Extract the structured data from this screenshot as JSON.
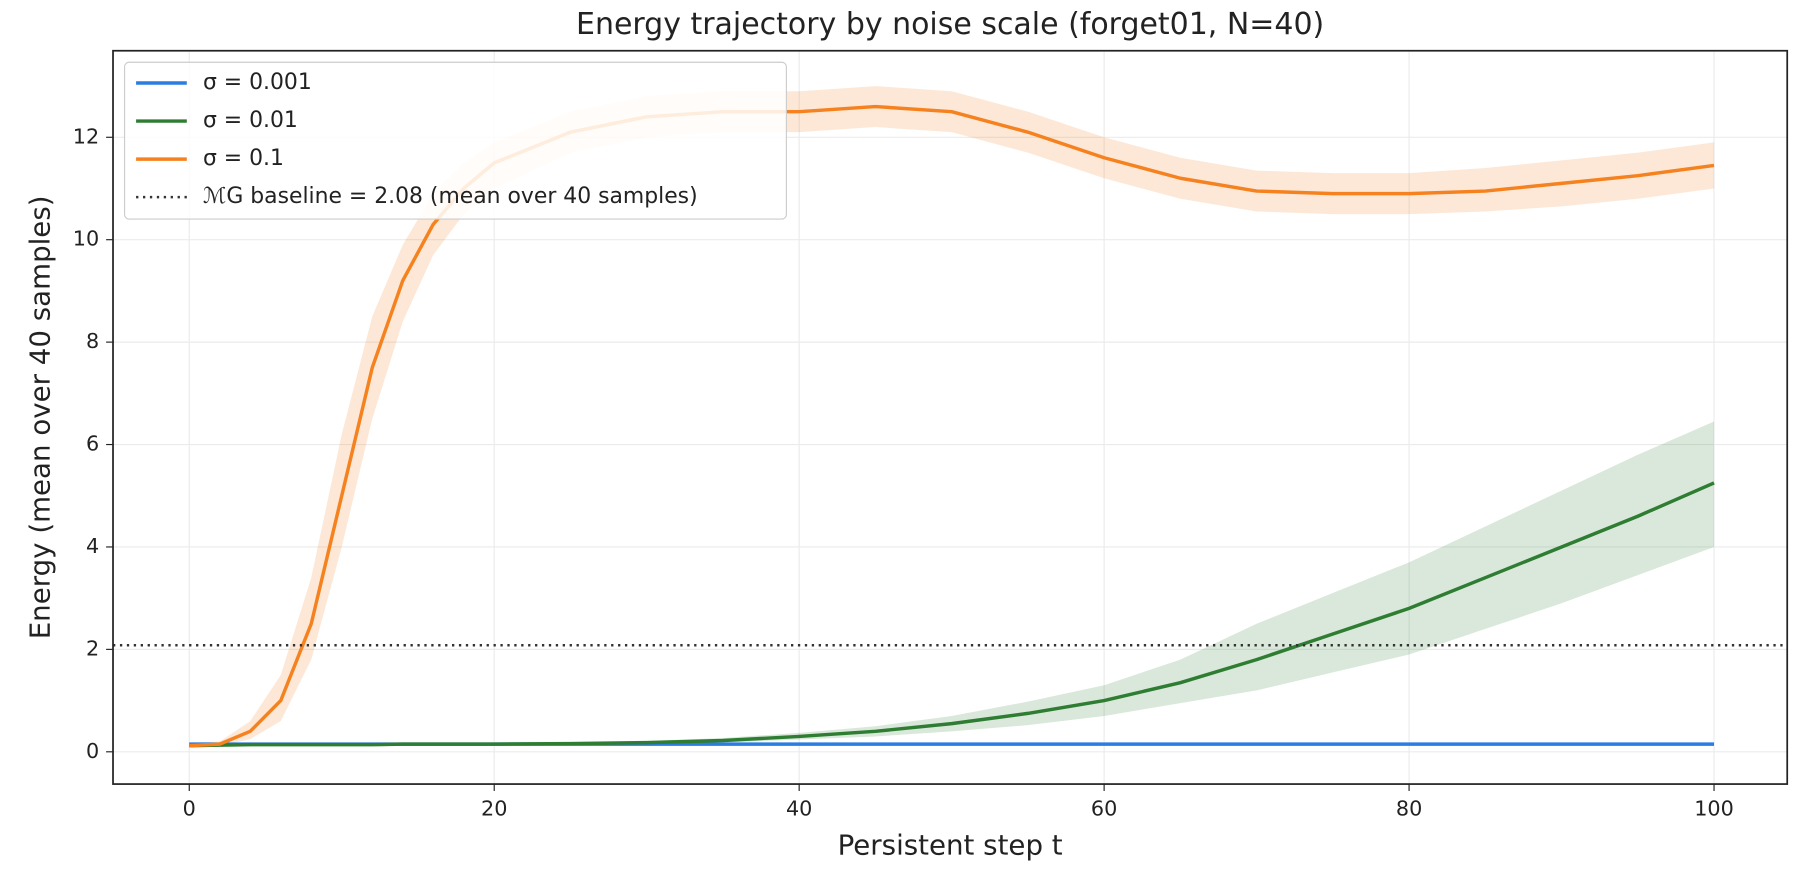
{
  "chart_data": {
    "type": "line",
    "title": "Energy trajectory by noise scale (forget01, N=40)",
    "x_label": "Persistent step t",
    "y_label": "Energy (mean over 40 samples)",
    "x": [
      0,
      2,
      4,
      6,
      8,
      10,
      12,
      14,
      16,
      18,
      20,
      25,
      30,
      35,
      40,
      45,
      50,
      55,
      60,
      65,
      70,
      75,
      80,
      85,
      90,
      95,
      100
    ],
    "series": [
      {
        "name": "σ = 0.001",
        "color": "#2a7de1",
        "values": [
          0.15,
          0.15,
          0.15,
          0.15,
          0.15,
          0.15,
          0.15,
          0.15,
          0.15,
          0.15,
          0.15,
          0.15,
          0.15,
          0.15,
          0.15,
          0.15,
          0.15,
          0.15,
          0.15,
          0.15,
          0.15,
          0.15,
          0.15,
          0.15,
          0.15,
          0.15,
          0.15
        ],
        "lower": [
          0.12,
          0.12,
          0.12,
          0.12,
          0.12,
          0.12,
          0.12,
          0.12,
          0.12,
          0.12,
          0.12,
          0.12,
          0.12,
          0.12,
          0.12,
          0.12,
          0.12,
          0.12,
          0.12,
          0.12,
          0.12,
          0.12,
          0.12,
          0.12,
          0.12,
          0.12,
          0.12
        ],
        "upper": [
          0.18,
          0.18,
          0.18,
          0.18,
          0.18,
          0.18,
          0.18,
          0.18,
          0.18,
          0.18,
          0.18,
          0.18,
          0.18,
          0.18,
          0.18,
          0.18,
          0.18,
          0.18,
          0.18,
          0.18,
          0.18,
          0.18,
          0.18,
          0.18,
          0.18,
          0.18,
          0.18
        ]
      },
      {
        "name": "σ = 0.01",
        "color": "#2e7d32",
        "values": [
          0.12,
          0.13,
          0.14,
          0.14,
          0.14,
          0.14,
          0.14,
          0.15,
          0.15,
          0.15,
          0.15,
          0.16,
          0.18,
          0.22,
          0.3,
          0.4,
          0.55,
          0.75,
          1.0,
          1.35,
          1.8,
          2.3,
          2.8,
          3.4,
          4.0,
          4.6,
          5.25
        ],
        "lower": [
          0.1,
          0.11,
          0.12,
          0.12,
          0.12,
          0.12,
          0.12,
          0.13,
          0.13,
          0.13,
          0.13,
          0.14,
          0.15,
          0.18,
          0.24,
          0.3,
          0.4,
          0.52,
          0.7,
          0.95,
          1.2,
          1.55,
          1.9,
          2.4,
          2.9,
          3.45,
          4.0
        ],
        "upper": [
          0.14,
          0.15,
          0.16,
          0.16,
          0.16,
          0.16,
          0.16,
          0.17,
          0.17,
          0.17,
          0.17,
          0.18,
          0.21,
          0.27,
          0.37,
          0.5,
          0.7,
          0.98,
          1.3,
          1.8,
          2.5,
          3.1,
          3.7,
          4.4,
          5.1,
          5.8,
          6.45
        ]
      },
      {
        "name": "σ = 0.1",
        "color": "#f5821f",
        "values": [
          0.12,
          0.15,
          0.4,
          1.0,
          2.5,
          5.0,
          7.5,
          9.2,
          10.3,
          11.0,
          11.5,
          12.1,
          12.4,
          12.5,
          12.5,
          12.6,
          12.5,
          12.1,
          11.6,
          11.2,
          10.95,
          10.9,
          10.9,
          10.95,
          11.1,
          11.25,
          11.45
        ],
        "lower": [
          0.08,
          0.1,
          0.25,
          0.6,
          1.8,
          4.0,
          6.5,
          8.4,
          9.7,
          10.5,
          11.0,
          11.7,
          12.0,
          12.1,
          12.1,
          12.2,
          12.1,
          11.7,
          11.2,
          10.8,
          10.55,
          10.5,
          10.5,
          10.55,
          10.65,
          10.8,
          11.0
        ],
        "upper": [
          0.18,
          0.2,
          0.6,
          1.5,
          3.4,
          6.2,
          8.5,
          9.9,
          10.9,
          11.5,
          11.9,
          12.5,
          12.8,
          12.9,
          12.9,
          13.0,
          12.9,
          12.5,
          12.0,
          11.6,
          11.35,
          11.3,
          11.3,
          11.4,
          11.55,
          11.7,
          11.9
        ]
      }
    ],
    "baseline": {
      "value": 2.08,
      "label": "ℳG baseline = 2.08 (mean over 40 samples)",
      "color": "#333333"
    },
    "xlim": [
      -5,
      104.8
    ],
    "ylim": [
      -0.63,
      13.69
    ],
    "xticks": [
      0,
      20,
      40,
      60,
      80,
      100
    ],
    "yticks": [
      0,
      2,
      4,
      6,
      8,
      10,
      12
    ],
    "grid": true,
    "legend": "upper left"
  }
}
